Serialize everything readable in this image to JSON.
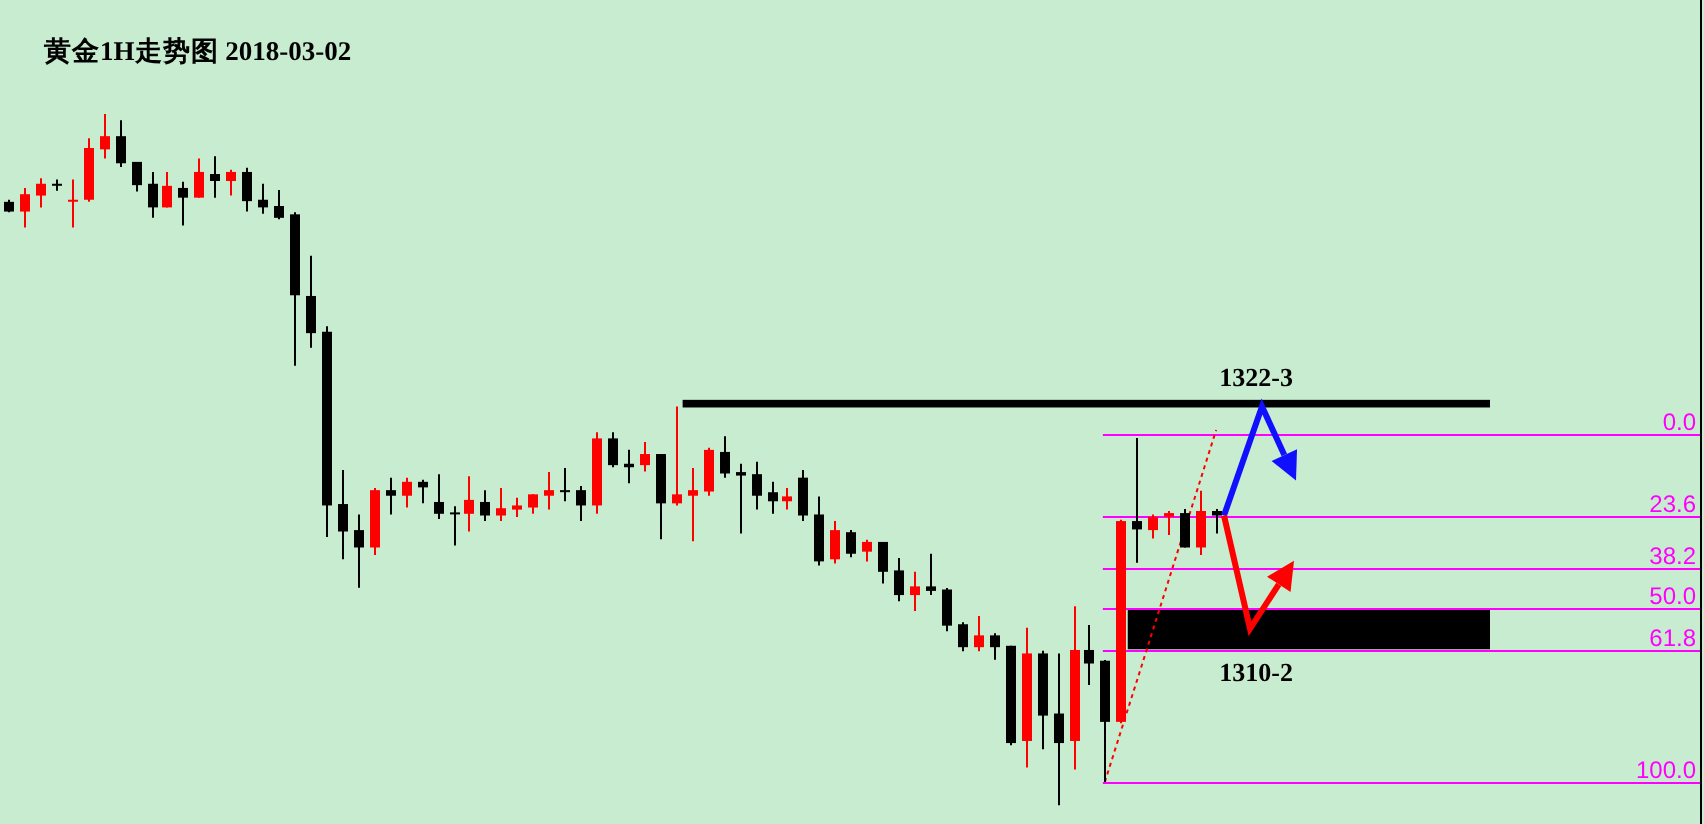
{
  "chart_data": {
    "type": "candlestick",
    "title": "黄金1H走势图 2018-03-02",
    "categories": [
      null,
      null,
      null,
      null,
      null,
      null,
      null,
      null,
      null,
      null,
      null,
      null,
      null,
      null,
      null,
      null,
      null,
      null,
      null,
      null,
      null,
      null,
      null,
      null,
      null,
      null,
      null,
      null,
      null,
      null,
      null,
      null,
      null,
      null,
      null,
      null,
      null,
      null,
      null,
      null,
      null,
      null,
      null,
      null,
      null,
      null,
      null,
      null,
      null,
      null,
      null,
      null,
      null,
      null,
      null,
      null,
      null,
      null,
      null,
      null,
      null,
      null,
      null,
      null,
      null,
      null,
      null,
      null,
      null,
      null,
      null,
      null,
      null,
      null,
      null,
      null,
      null,
      null,
      null,
      null,
      null,
      null,
      null,
      null,
      null,
      null,
      null,
      null,
      null,
      null,
      null,
      null,
      null,
      null,
      null,
      null,
      null,
      null,
      null,
      null,
      null,
      null,
      null,
      null,
      null,
      null,
      null
    ],
    "ohlc": [
      [
        -67.0,
        -64.0,
        -67.6,
        -64.2
      ],
      [
        -64.2,
        -59.6,
        -71.0,
        -69.2
      ],
      [
        -68.8,
        -65.4,
        -73.8,
        -72.2
      ],
      [
        -72.2,
        -70.2,
        -73.4,
        -71.8
      ],
      [
        -67.2,
        -59.6,
        -73.4,
        -67.6
      ],
      [
        -67.6,
        -67.0,
        -85.3,
        -82.5
      ],
      [
        -82.1,
        -79.5,
        -92.3,
        -85.9
      ],
      [
        -85.9,
        -77.0,
        -90.5,
        -78.1
      ],
      [
        -78.5,
        -70.0,
        -78.5,
        -71.8
      ],
      [
        -72.2,
        -62.4,
        -75.6,
        -65.4
      ],
      [
        -65.4,
        -65.4,
        -75.6,
        -71.6
      ],
      [
        -71.0,
        -60.2,
        -72.8,
        -68.2
      ],
      [
        -68.2,
        -68.2,
        -79.5,
        -75.6
      ],
      [
        -75.0,
        -68.2,
        -80.1,
        -73.0
      ],
      [
        -73.0,
        -68.8,
        -76.2,
        -75.6
      ],
      [
        -75.6,
        -64.2,
        -76.8,
        -67.2
      ],
      [
        -67.6,
        -63.6,
        -72.2,
        -65.4
      ],
      [
        -65.8,
        -62.0,
        -70.4,
        -62.4
      ],
      [
        -63.4,
        -19.8,
        -64.0,
        -40.1
      ],
      [
        -39.9,
        -25.0,
        -51.5,
        -29.2
      ],
      [
        -29.6,
        29.5,
        -31.2,
        20.4
      ],
      [
        20.0,
        35.9,
        10.2,
        27.9
      ],
      [
        27.5,
        44.1,
        23.0,
        32.5
      ],
      [
        32.5,
        34.7,
        15.4,
        16.0
      ],
      [
        16.0,
        23.0,
        12.4,
        17.6
      ],
      [
        17.6,
        21.0,
        12.4,
        13.6
      ],
      [
        13.6,
        19.8,
        13.0,
        15.2
      ],
      [
        19.4,
        24.3,
        11.4,
        22.8
      ],
      [
        22.4,
        31.9,
        20.6,
        22.8
      ],
      [
        22.8,
        27.9,
        12.0,
        18.8
      ],
      [
        19.4,
        24.9,
        16.0,
        23.3
      ],
      [
        23.3,
        24.9,
        15.4,
        21.2
      ],
      [
        21.6,
        23.7,
        18.2,
        20.4
      ],
      [
        21.0,
        22.8,
        17.2,
        17.2
      ],
      [
        17.6,
        21.6,
        10.8,
        16.0
      ],
      [
        16.0,
        19.2,
        9.6,
        16.4
      ],
      [
        16.0,
        24.9,
        14.8,
        20.4
      ],
      [
        20.4,
        22.8,
        -0.7,
        1.1
      ],
      [
        1.1,
        9.4,
        -0.7,
        8.8
      ],
      [
        8.4,
        14.0,
        4.4,
        9.4
      ],
      [
        8.8,
        10.6,
        2.1,
        5.6
      ],
      [
        5.6,
        30.1,
        5.6,
        19.8
      ],
      [
        19.8,
        20.4,
        -8.1,
        17.2
      ],
      [
        17.6,
        30.7,
        9.6,
        16.0
      ],
      [
        16.4,
        17.6,
        3.8,
        4.4
      ],
      [
        5.0,
        12.4,
        0.5,
        11.2
      ],
      [
        10.8,
        28.5,
        8.4,
        11.8
      ],
      [
        11.4,
        21.6,
        7.8,
        17.6
      ],
      [
        16.6,
        22.8,
        13.6,
        19.2
      ],
      [
        19.2,
        21.6,
        15.4,
        17.8
      ],
      [
        12.4,
        24.9,
        10.2,
        23.3
      ],
      [
        23.0,
        37.7,
        17.8,
        36.5
      ],
      [
        35.9,
        37.1,
        24.9,
        27.5
      ],
      [
        28.1,
        35.3,
        27.5,
        34.3
      ],
      [
        33.7,
        36.5,
        30.3,
        30.9
      ],
      [
        30.9,
        42.9,
        30.9,
        39.5
      ],
      [
        39.1,
        48.0,
        35.5,
        46.2
      ],
      [
        46.2,
        50.8,
        39.5,
        43.7
      ],
      [
        43.7,
        46.2,
        34.3,
        45.0
      ],
      [
        44.6,
        56.6,
        44.2,
        55.0
      ],
      [
        54.6,
        62.4,
        54.0,
        61.2
      ],
      [
        61.2,
        62.4,
        52.2,
        57.8
      ],
      [
        57.8,
        64.8,
        57.2,
        61.2
      ],
      [
        60.8,
        89.4,
        60.8,
        88.8
      ],
      [
        88.2,
        95.8,
        55.6,
        63.0
      ],
      [
        63.0,
        90.6,
        62.2,
        80.9
      ],
      [
        80.3,
        106.7,
        63.0,
        88.8
      ],
      [
        88.2,
        96.4,
        49.4,
        62.0
      ],
      [
        62.0,
        72.1,
        54.8,
        65.9
      ],
      [
        65.1,
        100.0,
        64.9,
        82.7
      ],
      [
        82.7,
        83.1,
        24.5,
        24.9
      ],
      [
        24.9,
        36.9,
        1.0,
        27.3
      ],
      [
        27.5,
        29.9,
        23.0,
        23.7
      ],
      [
        23.7,
        28.9,
        22.0,
        22.6
      ],
      [
        22.6,
        32.5,
        21.4,
        32.5
      ],
      [
        32.5,
        34.7,
        16.2,
        22.0
      ],
      [
        22.0,
        28.5,
        21.4,
        23.3
      ],
      null,
      null,
      null,
      null,
      null,
      null,
      null,
      null,
      null,
      null,
      null,
      null,
      null,
      null,
      null,
      null,
      null,
      null,
      null,
      null,
      null,
      null,
      null,
      null,
      null,
      null,
      null,
      null,
      null,
      null
    ],
    "colors": [
      "#000000",
      "#ff0000",
      "#ff0000",
      "#000000",
      "#ff0000",
      "#ff0000",
      "#ff0000",
      "#000000",
      "#000000",
      "#000000",
      "#ff0000",
      "#000000",
      "#ff0000",
      "#000000",
      "#ff0000",
      "#000000",
      "#000000",
      "#000000",
      "#000000",
      "#000000",
      "#000000",
      "#000000",
      "#000000",
      "#ff0000",
      "#000000",
      "#ff0000",
      "#000000",
      "#000000",
      "#000000",
      "#ff0000",
      "#000000",
      "#ff0000",
      "#ff0000",
      "#ff0000",
      "#ff0000",
      "#000000",
      "#000000",
      "#ff0000",
      "#000000",
      "#000000",
      "#ff0000",
      "#000000",
      "#ff0000",
      "#ff0000",
      "#ff0000",
      "#000000",
      "#000000",
      "#000000",
      "#000000",
      "#ff0000",
      "#000000",
      "#000000",
      "#ff0000",
      "#000000",
      "#ff0000",
      "#000000",
      "#000000",
      "#ff0000",
      "#000000",
      "#000000",
      "#000000",
      "#ff0000",
      "#000000",
      "#000000",
      "#ff0000",
      "#000000",
      "#000000",
      "#ff0000",
      "#000000",
      "#000000",
      "#ff0000",
      "#000000",
      "#ff0000",
      "#ff0000",
      "#000000",
      "#ff0000",
      "#000000",
      null,
      null,
      null,
      null,
      null,
      null,
      null,
      null,
      null,
      null,
      null,
      null,
      null,
      null,
      null,
      null,
      null,
      null,
      null,
      null,
      null,
      null,
      null,
      null,
      null,
      null,
      null,
      null,
      null,
      null
    ],
    "series": [
      {
        "type": "line",
        "color": "#ff0000",
        "values": [
          null,
          null,
          null,
          null,
          null,
          null,
          null,
          null,
          null,
          null,
          null,
          null,
          null,
          null,
          null,
          null,
          null,
          null,
          null,
          null,
          null,
          null,
          null,
          null,
          null,
          null,
          null,
          null,
          null,
          null,
          null,
          null,
          null,
          null,
          null,
          null,
          null,
          null,
          null,
          null,
          null,
          null,
          null,
          null,
          null,
          null,
          null,
          null,
          null,
          null,
          null,
          null,
          null,
          null,
          null,
          null,
          null,
          null,
          null,
          null,
          null,
          null,
          null,
          null,
          null,
          null,
          null,
          null,
          null,
          100.0,
          85.5,
          71.1,
          56.6,
          42.1,
          27.6,
          13.2,
          -1.3,
          null,
          null,
          null,
          null,
          null,
          null,
          null,
          null,
          null,
          null,
          null,
          null,
          null,
          null,
          null,
          null,
          null,
          null,
          null,
          null,
          null,
          null,
          null,
          null,
          null,
          null,
          null,
          null,
          null,
          null
        ]
      }
    ],
    "line_style": "dotted",
    "ylim": [
      112.1,
      -125.1
    ],
    "yticks": [
      {
        "value": 0,
        "label": "0.0"
      },
      23.6,
      38.2,
      {
        "value": 50,
        "label": "50.0"
      },
      61.8,
      {
        "value": 100,
        "label": "100.0"
      }
    ],
    "grid": "y",
    "bands": [
      {
        "axis": "y",
        "from": -10.0,
        "to": -7.8,
        "label": "1322-3",
        "color": "#000000"
      },
      {
        "axis": "y",
        "from": 50,
        "to": 61.8,
        "label": "1310-2",
        "color": "#000000"
      }
    ]
  }
}
